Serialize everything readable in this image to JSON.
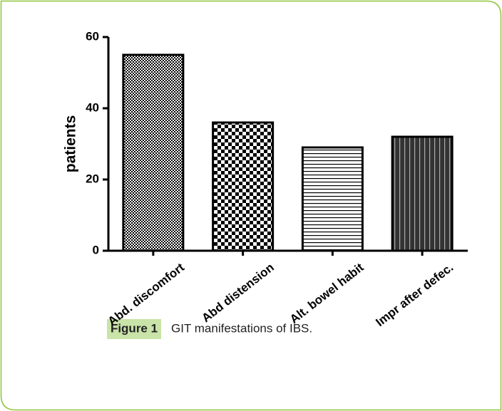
{
  "chart_data": {
    "type": "bar",
    "caption_label": "Figure 1",
    "caption": "GIT manifestations of IBS.",
    "ylabel": "patients",
    "categories": [
      "Abd. discomfort",
      "Abd distension",
      "Alt. bowel habit",
      "Impr after defec."
    ],
    "values": [
      55,
      36,
      29,
      32
    ],
    "color": "#000000",
    "ylim": [
      0,
      60
    ],
    "yticks": [
      0,
      20,
      40,
      60
    ],
    "grid": false
  }
}
